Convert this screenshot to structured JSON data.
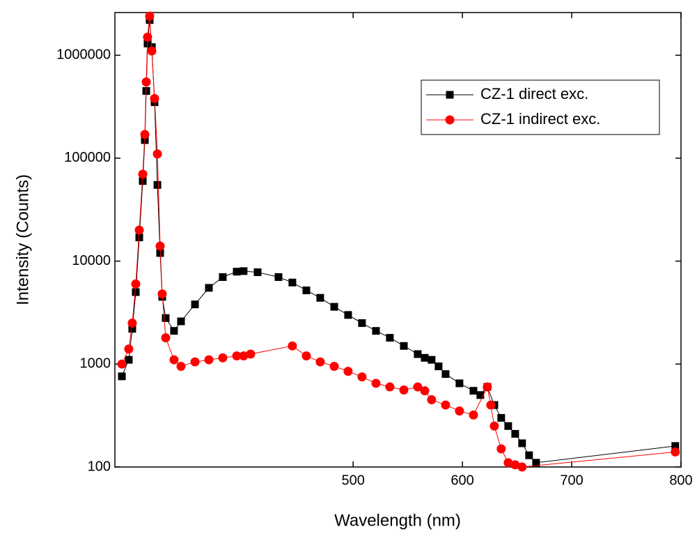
{
  "chart_data": {
    "type": "line",
    "x_label": "Wavelength (nm)",
    "y_label": "Intensity (Counts)",
    "xlim": [
      282,
      800
    ],
    "xticks": [
      500,
      600,
      700,
      800
    ],
    "ylim": [
      100,
      2600000
    ],
    "yticks": [
      100,
      1000,
      10000,
      100000,
      1000000
    ],
    "log_y": true,
    "grid": false,
    "legend_position": "upper right",
    "series": [
      {
        "name": "CZ-1 direct exc.",
        "color": "#000000",
        "marker": "square",
        "x": [
          288.4,
          294.7,
          297.9,
          301.1,
          304.3,
          307.5,
          309.4,
          310.7,
          311.9,
          313.8,
          315.8,
          318.3,
          320.9,
          323.4,
          325.3,
          328.5,
          336.1,
          342.5,
          355.3,
          368,
          380.7,
          393.5,
          399.8,
          412.6,
          431.7,
          444.4,
          457.2,
          469.9,
          482.7,
          495.4,
          508.1,
          520.9,
          533.6,
          546.4,
          559.1,
          565.5,
          571.8,
          578.2,
          584.6,
          597.3,
          610.1,
          616.4,
          622.8,
          629.2,
          635.5,
          641.9,
          648.3,
          654.6,
          661,
          667.4,
          794.8
        ],
        "values": [
          760,
          1100,
          2200,
          5000,
          17000,
          60000,
          150000,
          450000,
          1300000,
          2200000,
          1200000,
          350000,
          55000,
          12000,
          4500,
          2800,
          2100,
          2600,
          3800,
          5500,
          7000,
          7900,
          8000,
          7800,
          7000,
          6200,
          5200,
          4400,
          3600,
          3000,
          2500,
          2100,
          1800,
          1500,
          1250,
          1150,
          1100,
          950,
          800,
          650,
          550,
          500,
          600,
          400,
          300,
          250,
          210,
          170,
          130,
          110,
          160
        ]
      },
      {
        "name": "CZ-1 indirect exc.",
        "color": "#ff0000",
        "marker": "circle",
        "x": [
          288.4,
          294.7,
          297.9,
          301.1,
          304.3,
          307.5,
          309.4,
          310.7,
          311.9,
          313.8,
          315.8,
          318.3,
          320.9,
          323.4,
          325.3,
          328.5,
          336.1,
          342.5,
          355.3,
          368,
          380.7,
          393.5,
          399.8,
          406.2,
          444.4,
          457.2,
          469.9,
          482.7,
          495.4,
          508.1,
          520.9,
          533.6,
          546.4,
          559.1,
          565.5,
          571.8,
          584.6,
          597.3,
          610.1,
          622.8,
          626,
          629.2,
          635.5,
          641.9,
          648.3,
          654.6,
          794.8
        ],
        "values": [
          1000,
          1400,
          2500,
          6000,
          20000,
          70000,
          170000,
          550000,
          1500000,
          2400000,
          1100000,
          380000,
          110000,
          14000,
          4800,
          1800,
          1100,
          950,
          1050,
          1100,
          1150,
          1200,
          1200,
          1250,
          1500,
          1200,
          1050,
          950,
          850,
          750,
          650,
          600,
          560,
          600,
          550,
          450,
          400,
          350,
          320,
          600,
          400,
          250,
          150,
          110,
          105,
          100,
          140
        ]
      }
    ]
  }
}
